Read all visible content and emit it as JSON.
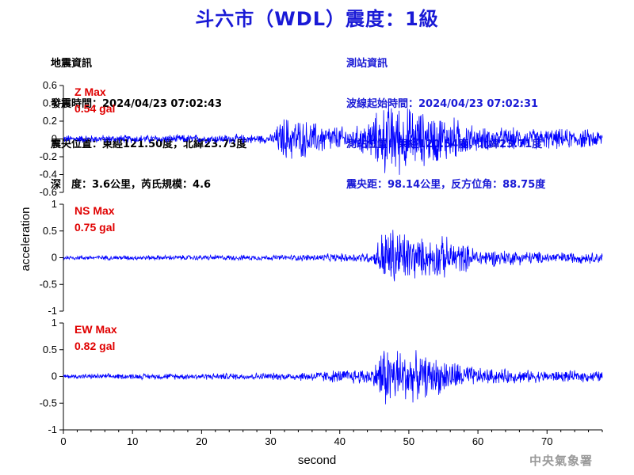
{
  "title": "斗六市（WDL）震度：1級",
  "quake_info": {
    "heading": "地震資訊",
    "origin_time": "發震時間：2024/04/23 07:02:43",
    "epicenter": "震央位置：東經121.50度，北緯23.73度",
    "depth_magnitude": "深　度：3.6公里，芮氏規模：4.6"
  },
  "station_info": {
    "heading": "測站資訊",
    "wave_start": "波線起始時間：2024/04/23 07:02:31",
    "station_location": "測站位置：東經120.54度，北緯23.71度",
    "distance_azimuth": "震央距：98.14公里，反方位角：88.75度"
  },
  "agency": "中央氣象署",
  "chart_data": {
    "type": "line",
    "xlabel": "second",
    "ylabel": "acceleration",
    "xlim": [
      0,
      78
    ],
    "x_ticks": [
      "0",
      "10",
      "20",
      "30",
      "40",
      "50",
      "60",
      "70"
    ],
    "line_color": "#0000ff",
    "panels": [
      {
        "component": "Z",
        "max_label": "Z Max",
        "max_value": "0.54 gal",
        "ylim": [
          -0.6,
          0.6
        ],
        "y_ticks": [
          "0.6",
          "0.4",
          "0.2",
          "0",
          "-0.2",
          "-0.4",
          "-0.6"
        ],
        "envelope": [
          [
            0,
            0.05
          ],
          [
            30,
            0.06
          ],
          [
            32,
            0.3
          ],
          [
            36,
            0.22
          ],
          [
            42,
            0.14
          ],
          [
            45,
            0.3
          ],
          [
            47,
            0.5
          ],
          [
            52,
            0.35
          ],
          [
            56,
            0.3
          ],
          [
            60,
            0.15
          ],
          [
            70,
            0.13
          ],
          [
            78,
            0.12
          ]
        ]
      },
      {
        "component": "NS",
        "max_label": "NS Max",
        "max_value": "0.75 gal",
        "ylim": [
          -1,
          1
        ],
        "y_ticks": [
          "1",
          "0.5",
          "0",
          "-0.5",
          "-1"
        ],
        "envelope": [
          [
            0,
            0.05
          ],
          [
            32,
            0.06
          ],
          [
            40,
            0.09
          ],
          [
            45,
            0.12
          ],
          [
            46,
            0.6
          ],
          [
            48,
            0.7
          ],
          [
            52,
            0.4
          ],
          [
            55,
            0.45
          ],
          [
            60,
            0.2
          ],
          [
            70,
            0.12
          ],
          [
            78,
            0.12
          ]
        ]
      },
      {
        "component": "EW",
        "max_label": "EW Max",
        "max_value": "0.82 gal",
        "ylim": [
          -1,
          1
        ],
        "y_ticks": [
          "1",
          "0.5",
          "0",
          "-0.5",
          "-1"
        ],
        "envelope": [
          [
            0,
            0.05
          ],
          [
            32,
            0.08
          ],
          [
            40,
            0.14
          ],
          [
            45,
            0.2
          ],
          [
            46,
            0.7
          ],
          [
            48,
            0.65
          ],
          [
            52,
            0.45
          ],
          [
            56,
            0.35
          ],
          [
            60,
            0.18
          ],
          [
            70,
            0.12
          ],
          [
            78,
            0.12
          ]
        ]
      }
    ]
  }
}
